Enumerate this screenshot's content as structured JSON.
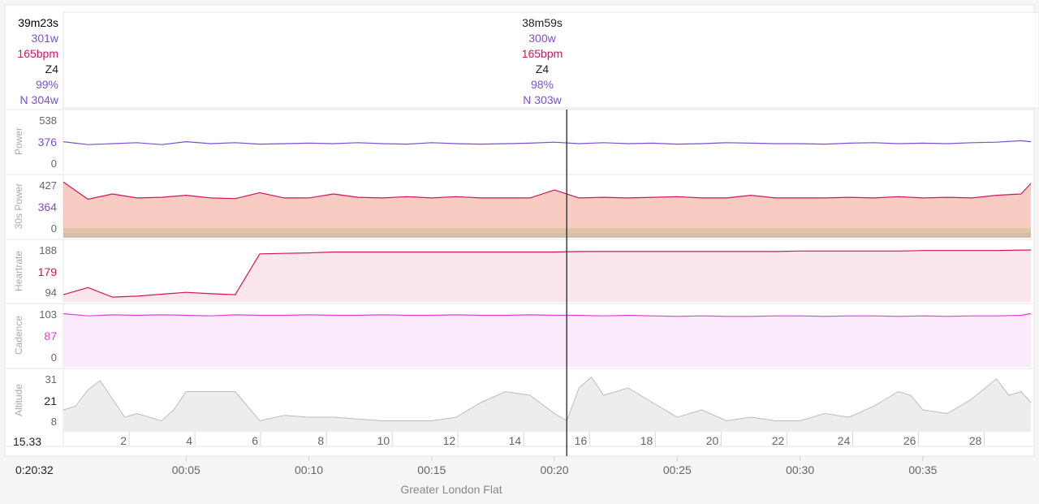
{
  "colors": {
    "power": "#7a4fd6",
    "heartrate": "#d4145a",
    "cadence": "#e040d9",
    "altitude": "#bdbdbd",
    "cursor": "#222222",
    "black": "#222222"
  },
  "start_readout": {
    "time": "39m23s",
    "power": "301w",
    "heartrate": "165bpm",
    "zone": "Z4",
    "pct": "99%",
    "np": "N 304w"
  },
  "cursor_readout": {
    "time": "38m59s",
    "power": "300w",
    "heartrate": "165bpm",
    "zone": "Z4",
    "pct": "98%",
    "np": "N 303w"
  },
  "cursor_position": {
    "minutes": 20.5
  },
  "footer": {
    "left_time": "0:20:32",
    "left_distance": "15.33",
    "route_name": "Greater London Flat"
  },
  "chart_data": {
    "type": "line",
    "x_range_minutes": [
      0,
      39.4
    ],
    "time_ticks": [
      "00:05",
      "00:10",
      "00:15",
      "00:20",
      "00:25",
      "00:30",
      "00:35"
    ],
    "time_tick_minutes": [
      5,
      10,
      15,
      20,
      25,
      30,
      35
    ],
    "distance_ticks": [
      "2",
      "4",
      "6",
      "8",
      "10",
      "12",
      "14",
      "16",
      "18",
      "20",
      "22",
      "24",
      "26",
      "28"
    ],
    "panels": [
      {
        "id": "power",
        "ylabel": "Power",
        "ticks": [
          "538",
          "376",
          "0"
        ],
        "ylim": [
          0,
          600
        ],
        "series": [
          {
            "x": [
              0,
              1,
              2,
              3,
              4,
              5,
              6,
              7,
              8,
              9,
              10,
              11,
              12,
              13,
              14,
              15,
              16,
              17,
              18,
              19,
              20,
              21,
              22,
              23,
              24,
              25,
              26,
              27,
              28,
              29,
              30,
              31,
              32,
              33,
              34,
              35,
              36,
              37,
              38,
              39,
              39.4
            ],
            "y": [
              320,
              290,
              300,
              310,
              290,
              320,
              300,
              310,
              295,
              300,
              305,
              300,
              310,
              300,
              295,
              310,
              300,
              295,
              300,
              305,
              315,
              300,
              310,
              300,
              305,
              295,
              300,
              310,
              305,
              300,
              300,
              295,
              305,
              310,
              300,
              305,
              300,
              310,
              315,
              330,
              320
            ]
          }
        ]
      },
      {
        "id": "power30s",
        "ylabel": "30s Power",
        "ticks": [
          "427",
          "364",
          "0"
        ],
        "ylim": [
          0,
          440
        ],
        "series": [
          {
            "x": [
              0,
              1,
              2,
              3,
              4,
              5,
              6,
              7,
              8,
              9,
              10,
              11,
              12,
              13,
              14,
              15,
              16,
              17,
              18,
              19,
              20,
              21,
              22,
              23,
              24,
              25,
              26,
              27,
              28,
              29,
              30,
              31,
              32,
              33,
              34,
              35,
              36,
              37,
              38,
              39,
              39.4
            ],
            "y": [
              420,
              290,
              330,
              300,
              305,
              320,
              300,
              295,
              340,
              300,
              300,
              330,
              305,
              300,
              310,
              300,
              310,
              300,
              300,
              300,
              360,
              300,
              305,
              300,
              305,
              310,
              300,
              300,
              320,
              300,
              300,
              300,
              305,
              300,
              310,
              300,
              305,
              300,
              320,
              330,
              410
            ]
          }
        ]
      },
      {
        "id": "heartrate",
        "ylabel": "Heartrate",
        "ticks": [
          "188",
          "179",
          "94"
        ],
        "ylim": [
          80,
          200
        ],
        "series": [
          {
            "x": [
              0,
              1,
              2,
              3,
              4,
              5,
              6,
              7,
              8,
              9,
              10,
              11,
              12,
              13,
              14,
              15,
              16,
              17,
              18,
              19,
              20,
              21,
              22,
              23,
              24,
              25,
              26,
              27,
              28,
              29,
              30,
              31,
              32,
              33,
              34,
              35,
              36,
              37,
              38,
              39,
              39.4
            ],
            "y": [
              95,
              110,
              90,
              92,
              96,
              100,
              97,
              95,
              180,
              181,
              182,
              184,
              184,
              184,
              184,
              184,
              184,
              184,
              184,
              184,
              184,
              185,
              185,
              185,
              185,
              185,
              185,
              185,
              185,
              185,
              186,
              186,
              186,
              186,
              186,
              187,
              187,
              187,
              187,
              188,
              188
            ]
          }
        ]
      },
      {
        "id": "cadence",
        "ylabel": "Cadence",
        "ticks": [
          "103",
          "87",
          "0"
        ],
        "ylim": [
          0,
          110
        ],
        "series": [
          {
            "x": [
              0,
              1,
              2,
              3,
              4,
              5,
              6,
              7,
              8,
              9,
              10,
              11,
              12,
              13,
              14,
              15,
              16,
              17,
              18,
              19,
              20,
              21,
              22,
              23,
              24,
              25,
              26,
              27,
              28,
              29,
              30,
              31,
              32,
              33,
              34,
              35,
              36,
              37,
              38,
              39,
              39.4
            ],
            "y": [
              100,
              96,
              98,
              97,
              98,
              97,
              96,
              98,
              97,
              97,
              98,
              97,
              97,
              98,
              97,
              97,
              98,
              97,
              97,
              98,
              97,
              97,
              96,
              97,
              96,
              95,
              96,
              95,
              95,
              96,
              96,
              95,
              96,
              96,
              95,
              96,
              95,
              96,
              96,
              97,
              100
            ]
          }
        ]
      },
      {
        "id": "altitude",
        "ylabel": "Altitude",
        "ticks": [
          "31",
          "21",
          "8"
        ],
        "ylim": [
          2,
          34
        ],
        "series": [
          {
            "x": [
              0,
              0.5,
              1,
              1.5,
              2,
              2.5,
              3,
              3.5,
              4,
              4.5,
              5,
              6,
              7,
              7.5,
              8,
              9,
              10,
              11,
              12,
              13,
              14,
              15,
              16,
              17,
              18,
              19,
              20,
              20.5,
              21,
              21.5,
              22,
              23,
              24,
              25,
              26,
              27,
              28,
              29,
              30,
              31,
              32,
              33,
              34,
              34.5,
              35,
              36,
              37,
              38,
              38.5,
              39,
              39.4
            ],
            "y": [
              14,
              16,
              25,
              30,
              20,
              10,
              12,
              10,
              8,
              14,
              24,
              24,
              24,
              16,
              8,
              11,
              10,
              10,
              9,
              8,
              8,
              8,
              10,
              18,
              24,
              22,
              12,
              8,
              26,
              32,
              22,
              26,
              18,
              10,
              14,
              8,
              10,
              8,
              8,
              12,
              10,
              16,
              24,
              22,
              14,
              12,
              20,
              31,
              22,
              24,
              18
            ]
          }
        ]
      }
    ]
  }
}
